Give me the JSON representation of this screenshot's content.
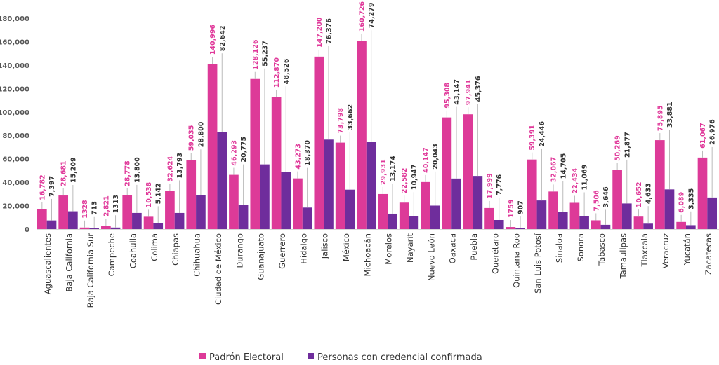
{
  "chart_data": {
    "type": "bar",
    "title": "",
    "xlabel": "",
    "ylabel": "",
    "ylim": [
      0,
      180000
    ],
    "yticks": [
      "0",
      "20,000",
      "40,000",
      "60,000",
      "80,000",
      "100,000",
      "120,000",
      "140,000",
      "160,000",
      "180,000"
    ],
    "grid": false,
    "legend_position": "bottom",
    "categories": [
      "Aguascalientes",
      "Baja California",
      "Baja California Sur",
      "Campeche",
      "Coahuila",
      "Colima",
      "Chiapas",
      "Chihuahua",
      "Ciudad de México",
      "Durango",
      "Guanajuato",
      "Guerrero",
      "Hidalgo",
      "Jalisco",
      "México",
      "Michoacán",
      "Morelos",
      "Nayarit",
      "Nuevo León",
      "Oaxaca",
      "Puebla",
      "Querétaro",
      "Quintana Roo",
      "San Luis Potosí",
      "Sinaloa",
      "Sonora",
      "Tabasco",
      "Tamaulipas",
      "Tlaxcala",
      "Veracruz",
      "Yucatán",
      "Zacatecas"
    ],
    "series": [
      {
        "name": "Padrón Electoral",
        "color": "#dd3a98",
        "values": [
          16782,
          28681,
          1328,
          2821,
          28778,
          10538,
          32624,
          59035,
          140996,
          46293,
          128126,
          112870,
          43273,
          147200,
          73798,
          160726,
          29931,
          22582,
          40147,
          95308,
          97941,
          17999,
          1759,
          59391,
          32067,
          22434,
          7506,
          50269,
          10652,
          75895,
          6089,
          61067
        ],
        "labels": [
          "16,782",
          "28,681",
          "1328",
          "2,821",
          "28,778",
          "10,538",
          "32,624",
          "59,035",
          "140,996",
          "46,293",
          "128,126",
          "112,870",
          "43,273",
          "147,200",
          "73,798",
          "160,726",
          "29,931",
          "22,582",
          "40,147",
          "95,308",
          "97,941",
          "17,999",
          "1759",
          "59,391",
          "32,067",
          "22,434",
          "7,506",
          "50,269",
          "10,652",
          "75,895",
          "6,089",
          "61,067"
        ]
      },
      {
        "name": "Personas con credencial confirmada",
        "color": "#6f2d9c",
        "values": [
          7397,
          15209,
          713,
          1313,
          13800,
          5142,
          13793,
          28800,
          82642,
          20775,
          55237,
          48526,
          18370,
          76376,
          33662,
          74279,
          13174,
          10947,
          20043,
          43147,
          45376,
          7776,
          907,
          24446,
          14705,
          11069,
          3646,
          21877,
          4633,
          33881,
          3335,
          26976
        ],
        "labels": [
          "7,397",
          "15,209",
          "713",
          "1313",
          "13,800",
          "5,142",
          "13,793",
          "28,800",
          "82,642",
          "20,775",
          "55,237",
          "48,526",
          "18,370",
          "76,376",
          "33,662",
          "74,279",
          "13,174",
          "10,947",
          "20,043",
          "43,147",
          "45,376",
          "7,776",
          "907",
          "24,446",
          "14,705",
          "11,069",
          "3,646",
          "21,877",
          "4,633",
          "33,881",
          "3,335",
          "26,976"
        ]
      }
    ]
  }
}
